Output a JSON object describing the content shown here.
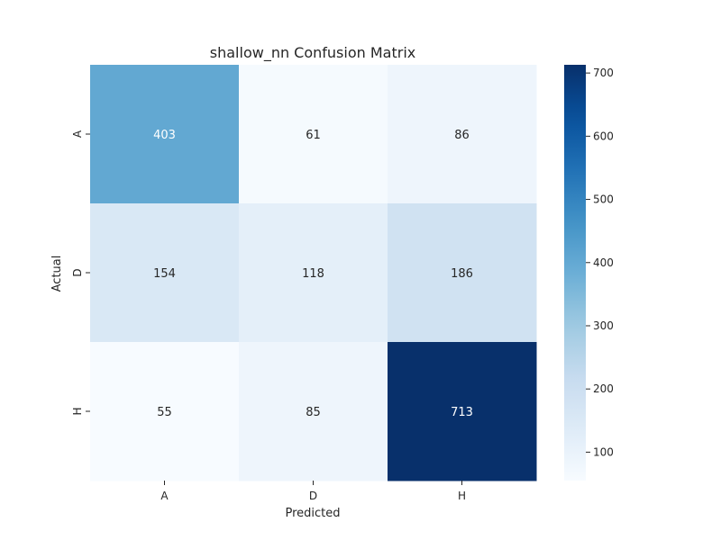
{
  "chart_data": {
    "type": "heatmap",
    "title": "shallow_nn Confusion Matrix",
    "xlabel": "Predicted",
    "ylabel": "Actual",
    "x_categories": [
      "A",
      "D",
      "H"
    ],
    "y_categories": [
      "A",
      "D",
      "H"
    ],
    "values": [
      [
        403,
        61,
        86
      ],
      [
        154,
        118,
        186
      ],
      [
        55,
        85,
        713
      ]
    ],
    "colormap": "Blues",
    "colorbar": {
      "min": 55,
      "max": 713,
      "ticks": [
        "100",
        "200",
        "300",
        "400",
        "500",
        "600",
        "700"
      ]
    },
    "grid": false,
    "colors": {
      "low": "#f7fbff",
      "high": "#08306b",
      "text_dark": "#262626",
      "text_light": "#ffffff"
    }
  }
}
